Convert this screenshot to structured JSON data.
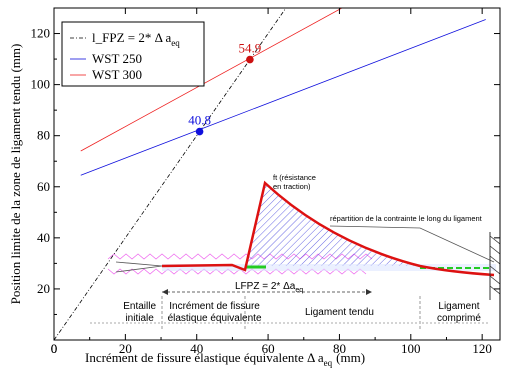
{
  "chart_data": {
    "type": "line",
    "xlabel_main": "Incrément de fissure élastique équivalente  Δ a",
    "xlabel_sub": "eq",
    "xlabel_unit": "(mm)",
    "ylabel": "Position  limite de la zone de ligament tendu (mm)",
    "xlim": [
      0,
      125
    ],
    "ylim": [
      0,
      130
    ],
    "xticks": [
      0,
      20,
      40,
      60,
      80,
      100,
      120
    ],
    "yticks": [
      20,
      40,
      60,
      80,
      100,
      120
    ],
    "grid": false,
    "legend_position": "top-left",
    "legend": [
      {
        "label_main": "l_FPZ = 2* Δ a",
        "label_sub": "eq",
        "color": "#000000",
        "style": "dashdot"
      },
      {
        "label_main": "WST 250",
        "color": "#1010dd",
        "style": "solid"
      },
      {
        "label_main": "WST 300",
        "color": "#ee2020",
        "style": "solid"
      }
    ],
    "series": [
      {
        "name": "l_FPZ = 2* Δ aeq",
        "color": "#000000",
        "x": [
          0,
          67
        ],
        "y": [
          0,
          134
        ]
      },
      {
        "name": "WST 250",
        "color": "#1010dd",
        "x": [
          7.5,
          121
        ],
        "y": [
          64.5,
          125.5
        ]
      },
      {
        "name": "WST 300",
        "color": "#ee2020",
        "x": [
          7.5,
          82
        ],
        "y": [
          74,
          131
        ]
      }
    ],
    "points": [
      {
        "x": 40.8,
        "y": 81.6,
        "label": "40.8",
        "color": "#1010dd"
      },
      {
        "x": 54.9,
        "y": 109.8,
        "label": "54.9",
        "color": "#cc1010"
      }
    ],
    "annotations": {
      "peak_label_line1": "ft (résistance",
      "peak_label_line2": "en traction)",
      "distribution_label": "répartition de la contrainte le long du ligament",
      "lfpz_label_main": "LFPZ = 2* Δa",
      "lfpz_label_sub": "eq",
      "zones": [
        {
          "lines": [
            "Entaille",
            "initiale"
          ],
          "x": 24
        },
        {
          "lines": [
            "Incrément de fissure",
            "élastique équivalente"
          ],
          "x": 45
        },
        {
          "lines": [
            "Ligament tendu"
          ],
          "x": 80
        },
        {
          "lines": [
            "Ligament",
            "comprimé"
          ],
          "x": 113.5
        }
      ]
    },
    "colors": {
      "red_curve": "#dd1111",
      "green_segment": "#22cc22",
      "hatch_blue": "#4444dd",
      "zigzag_pink": "#ee66ee"
    }
  }
}
